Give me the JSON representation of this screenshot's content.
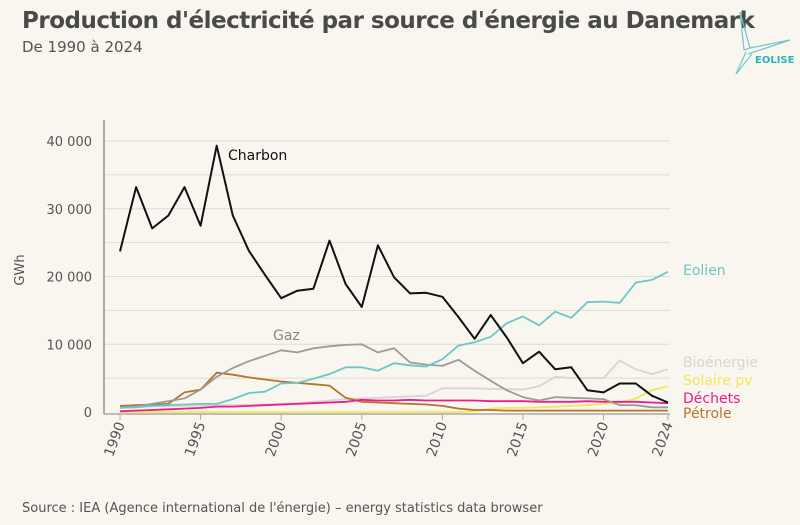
{
  "header": {
    "title": "Production d'électricité par source d'énergie au Danemark",
    "subtitle": "De 1990 à 2024"
  },
  "logo": {
    "text": "EOLISE",
    "color": "#2bb3c0"
  },
  "footer": {
    "source": "Source : IEA (Agence international de l'énergie) – energy statistics data browser"
  },
  "chart_data": {
    "type": "line",
    "title": "Production d'électricité par source d'énergie au Danemark",
    "subtitle": "De 1990 à 2024",
    "ylabel": "GWh",
    "xlabel": "",
    "ylim": [
      0,
      40000
    ],
    "xlim": [
      1990,
      2024
    ],
    "grid": true,
    "y_ticks": [
      0,
      10000,
      20000,
      30000,
      40000
    ],
    "y_tick_labels": [
      "0",
      "10 000",
      "20 000",
      "30 000",
      "40 000"
    ],
    "x_ticks": [
      1990,
      1995,
      2000,
      2005,
      2010,
      2015,
      2020,
      2024
    ],
    "x": [
      1990,
      1991,
      1992,
      1993,
      1994,
      1995,
      1996,
      1997,
      1998,
      1999,
      2000,
      2001,
      2002,
      2003,
      2004,
      2005,
      2006,
      2007,
      2008,
      2009,
      2010,
      2011,
      2012,
      2013,
      2014,
      2015,
      2016,
      2017,
      2018,
      2019,
      2020,
      2021,
      2022,
      2023,
      2024
    ],
    "series": [
      {
        "name": "Charbon",
        "color": "#111111",
        "values": [
          23700,
          33200,
          27100,
          29000,
          33200,
          27500,
          39300,
          29000,
          23800,
          20200,
          16800,
          17900,
          18200,
          25300,
          18900,
          15500,
          24600,
          19900,
          17500,
          17600,
          17000,
          14000,
          10800,
          14300,
          11000,
          7200,
          8900,
          6300,
          6600,
          3200,
          2900,
          4200,
          4200,
          2400,
          1400
        ]
      },
      {
        "name": "Gaz",
        "color": "#9e9a98",
        "values": [
          700,
          800,
          1200,
          1600,
          2000,
          3300,
          5200,
          6500,
          7500,
          8300,
          9100,
          8800,
          9400,
          9700,
          9900,
          10000,
          8800,
          9400,
          7300,
          7000,
          6800,
          7700,
          6100,
          4600,
          3200,
          2200,
          1700,
          2200,
          2100,
          2000,
          1900,
          1000,
          1000,
          700,
          700
        ]
      },
      {
        "name": "Eolien",
        "color": "#6cc7c9",
        "values": [
          600,
          700,
          900,
          1000,
          1100,
          1200,
          1200,
          1900,
          2800,
          3000,
          4200,
          4300,
          4900,
          5600,
          6600,
          6600,
          6100,
          7200,
          6900,
          6700,
          7800,
          9800,
          10300,
          11100,
          13100,
          14100,
          12800,
          14800,
          13900,
          16200,
          16300,
          16100,
          19100,
          19500,
          20700
        ]
      },
      {
        "name": "Bioénergie",
        "color": "#d8d5d2",
        "values": [
          800,
          800,
          850,
          900,
          900,
          950,
          1000,
          1000,
          1050,
          1100,
          1200,
          1300,
          1500,
          1700,
          1900,
          2000,
          2100,
          2200,
          2300,
          2400,
          3500,
          3500,
          3500,
          3400,
          3400,
          3300,
          3800,
          5200,
          5000,
          5000,
          5000,
          7600,
          6300,
          5600,
          6300
        ]
      },
      {
        "name": "Solaire pv",
        "color": "#f2e85a",
        "values": [
          0,
          0,
          0,
          0,
          0,
          0,
          0,
          0,
          0,
          0,
          0,
          0,
          0,
          0,
          0,
          0,
          0,
          0,
          0,
          0,
          0,
          0,
          100,
          500,
          600,
          600,
          700,
          800,
          900,
          1000,
          1200,
          1300,
          2000,
          3200,
          3800
        ]
      },
      {
        "name": "Déchets",
        "color": "#ec1c8c",
        "values": [
          100,
          200,
          300,
          400,
          500,
          600,
          800,
          800,
          900,
          1000,
          1100,
          1200,
          1300,
          1400,
          1500,
          1800,
          1700,
          1700,
          1800,
          1700,
          1700,
          1700,
          1700,
          1600,
          1600,
          1600,
          1500,
          1500,
          1500,
          1600,
          1500,
          1500,
          1500,
          1400,
          1300
        ]
      },
      {
        "name": "Pétrole",
        "color": "#b5752a",
        "values": [
          900,
          1000,
          1100,
          1200,
          2900,
          3300,
          5800,
          5500,
          5100,
          4800,
          4500,
          4300,
          4100,
          3900,
          2100,
          1500,
          1400,
          1300,
          1200,
          1100,
          900,
          500,
          300,
          300,
          200,
          200,
          200,
          200,
          200,
          200,
          200,
          200,
          200,
          200,
          200
        ]
      }
    ]
  }
}
